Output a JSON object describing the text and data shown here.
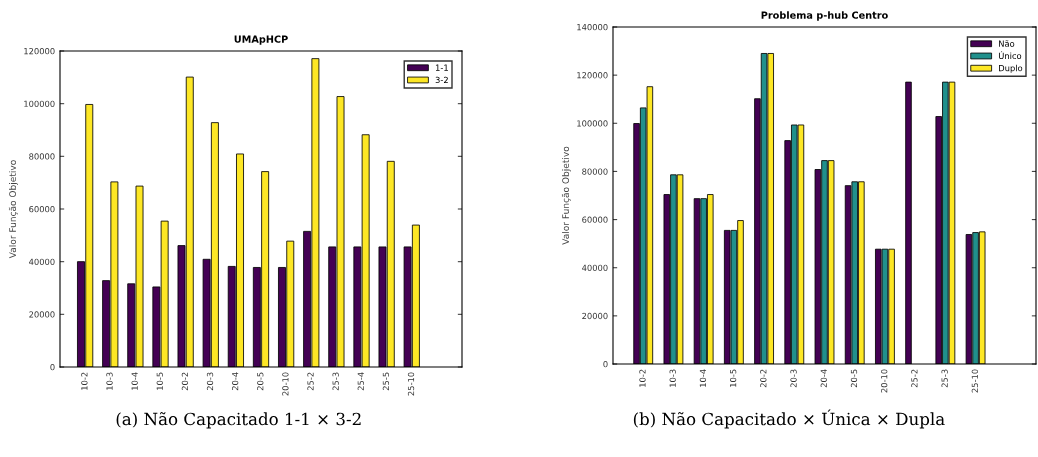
{
  "chart_data": [
    {
      "type": "bar",
      "title": "UMApHCP",
      "ylabel": "Valor Função Objetivo",
      "categories": [
        "10-2",
        "10-3",
        "10-4",
        "10-5",
        "20-2",
        "20-3",
        "20-4",
        "20-5",
        "20-10",
        "25-2",
        "25-3",
        "25-4",
        "25-5",
        "25-10"
      ],
      "series": [
        {
          "name": "1-1",
          "color": "#440154",
          "values": [
            40000,
            32800,
            31600,
            30400,
            46100,
            40900,
            38200,
            37800,
            37800,
            51500,
            45600,
            45600,
            45600,
            45600
          ]
        },
        {
          "name": "3-2",
          "color": "#fde725",
          "values": [
            99700,
            70300,
            68700,
            55400,
            110100,
            92800,
            80900,
            74200,
            47800,
            117100,
            102700,
            88200,
            78100,
            53900
          ]
        }
      ],
      "ylim": [
        0,
        120000
      ],
      "yticks": [
        0,
        20000,
        40000,
        60000,
        80000,
        100000,
        120000
      ],
      "legend": "top right",
      "grid": false,
      "annotations": [
        "(a) Não Capacitado 1-1 × 3-2"
      ]
    },
    {
      "type": "bar",
      "title": "Problema p-hub Centro",
      "ylabel": "Valor Função Objetivo",
      "categories": [
        "10-2",
        "10-3",
        "10-4",
        "10-5",
        "20-2",
        "20-3",
        "20-4",
        "20-5",
        "20-10",
        "25-2",
        "25-3",
        "25-10"
      ],
      "series": [
        {
          "name": "Não",
          "color": "#440154",
          "values": [
            99900,
            70400,
            68700,
            55500,
            110200,
            92800,
            80800,
            74100,
            47700,
            117100,
            102800,
            53800
          ]
        },
        {
          "name": "Único",
          "color": "#21908c",
          "values": [
            106400,
            78600,
            68700,
            55500,
            129000,
            99300,
            84500,
            75700,
            47700,
            null,
            117100,
            54600
          ]
        },
        {
          "name": "Duplo",
          "color": "#fde725",
          "values": [
            115200,
            78600,
            70400,
            59600,
            129000,
            99300,
            84500,
            75700,
            47700,
            null,
            117100,
            54900
          ]
        }
      ],
      "ylim": [
        0,
        140000
      ],
      "yticks": [
        0,
        20000,
        40000,
        60000,
        80000,
        100000,
        120000,
        140000
      ],
      "legend": "top right",
      "grid": false,
      "annotations": [
        "(b) Não Capacitado × Única × Dupla"
      ]
    }
  ]
}
